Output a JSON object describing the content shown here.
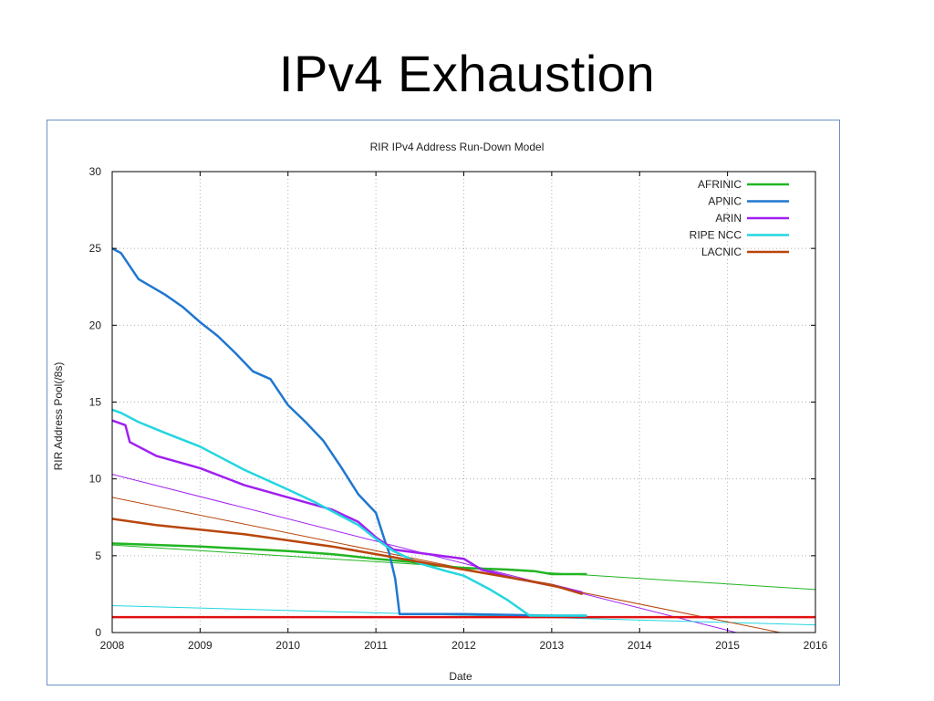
{
  "slide": {
    "title": "IPv4 Exhaustion"
  },
  "colors": {
    "frame_border": "#6b8fc7",
    "AFRINIC": "#22b522",
    "APNIC": "#1f77d0",
    "ARIN": "#a020f0",
    "RIPE NCC": "#23d6e0",
    "LACNIC": "#b8460b",
    "threshold": "#e01010",
    "grid": "#b0b0b0"
  },
  "chart_data": {
    "type": "line",
    "title": "RIR IPv4 Address Run-Down Model",
    "xlabel": "Date",
    "ylabel": "RIR Address Pool(/8s)",
    "xlim": [
      2008,
      2016
    ],
    "ylim": [
      0,
      30
    ],
    "x_ticks": [
      "2008",
      "2009",
      "2010",
      "2011",
      "2012",
      "2013",
      "2014",
      "2015",
      "2016"
    ],
    "y_ticks": [
      "0",
      "5",
      "10",
      "15",
      "20",
      "25",
      "30"
    ],
    "grid": true,
    "legend_position": "top-right",
    "threshold_line": {
      "y": 1,
      "x": [
        2008,
        2016
      ]
    },
    "series": [
      {
        "name": "AFRINIC",
        "data": [
          [
            2008.0,
            5.8
          ],
          [
            2009.0,
            5.6
          ],
          [
            2010.0,
            5.3
          ],
          [
            2010.5,
            5.1
          ],
          [
            2011.0,
            4.8
          ],
          [
            2011.4,
            4.6
          ],
          [
            2011.6,
            4.4
          ],
          [
            2012.0,
            4.2
          ],
          [
            2012.5,
            4.1
          ],
          [
            2012.8,
            4.0
          ],
          [
            2013.0,
            3.8
          ],
          [
            2013.4,
            3.8
          ]
        ],
        "trend": [
          [
            2008.0,
            5.7
          ],
          [
            2016.0,
            2.8
          ]
        ]
      },
      {
        "name": "APNIC",
        "data": [
          [
            2008.0,
            25.0
          ],
          [
            2008.1,
            24.7
          ],
          [
            2008.3,
            23.0
          ],
          [
            2008.6,
            22.0
          ],
          [
            2008.8,
            21.2
          ],
          [
            2009.0,
            20.2
          ],
          [
            2009.2,
            19.3
          ],
          [
            2009.4,
            18.2
          ],
          [
            2009.6,
            17.0
          ],
          [
            2009.8,
            16.5
          ],
          [
            2010.0,
            14.8
          ],
          [
            2010.2,
            13.7
          ],
          [
            2010.4,
            12.5
          ],
          [
            2010.6,
            10.8
          ],
          [
            2010.8,
            9.0
          ],
          [
            2011.0,
            7.8
          ],
          [
            2011.1,
            6.0
          ],
          [
            2011.15,
            5.2
          ],
          [
            2011.22,
            3.5
          ],
          [
            2011.27,
            1.2
          ],
          [
            2012.0,
            1.2
          ],
          [
            2013.0,
            1.1
          ],
          [
            2013.4,
            1.1
          ]
        ]
      },
      {
        "name": "ARIN",
        "data": [
          [
            2008.0,
            13.8
          ],
          [
            2008.15,
            13.5
          ],
          [
            2008.2,
            12.4
          ],
          [
            2008.5,
            11.5
          ],
          [
            2009.0,
            10.7
          ],
          [
            2009.5,
            9.6
          ],
          [
            2010.0,
            8.8
          ],
          [
            2010.5,
            8.0
          ],
          [
            2010.8,
            7.2
          ],
          [
            2011.0,
            6.2
          ],
          [
            2011.2,
            5.4
          ],
          [
            2011.6,
            5.1
          ],
          [
            2012.0,
            4.8
          ],
          [
            2012.2,
            4.1
          ],
          [
            2012.6,
            3.5
          ],
          [
            2013.0,
            3.1
          ],
          [
            2013.35,
            2.6
          ]
        ],
        "trend": [
          [
            2008.0,
            10.3
          ],
          [
            2015.1,
            0.0
          ]
        ]
      },
      {
        "name": "RIPE NCC",
        "data": [
          [
            2008.0,
            14.5
          ],
          [
            2008.1,
            14.3
          ],
          [
            2008.3,
            13.7
          ],
          [
            2008.6,
            13.0
          ],
          [
            2009.0,
            12.1
          ],
          [
            2009.5,
            10.6
          ],
          [
            2010.0,
            9.3
          ],
          [
            2010.3,
            8.5
          ],
          [
            2010.6,
            7.6
          ],
          [
            2010.8,
            7.0
          ],
          [
            2011.0,
            6.1
          ],
          [
            2011.2,
            5.3
          ],
          [
            2011.5,
            4.5
          ],
          [
            2011.8,
            4.0
          ],
          [
            2012.0,
            3.7
          ],
          [
            2012.3,
            2.8
          ],
          [
            2012.5,
            2.1
          ],
          [
            2012.7,
            1.3
          ],
          [
            2012.75,
            1.1
          ],
          [
            2013.4,
            1.1
          ]
        ],
        "trend": [
          [
            2008.0,
            1.75
          ],
          [
            2016.0,
            0.5
          ]
        ]
      },
      {
        "name": "LACNIC",
        "data": [
          [
            2008.0,
            7.4
          ],
          [
            2008.5,
            7.0
          ],
          [
            2009.0,
            6.7
          ],
          [
            2009.5,
            6.4
          ],
          [
            2010.0,
            6.0
          ],
          [
            2010.5,
            5.6
          ],
          [
            2011.0,
            5.1
          ],
          [
            2011.5,
            4.6
          ],
          [
            2012.0,
            4.1
          ],
          [
            2012.5,
            3.6
          ],
          [
            2013.0,
            3.1
          ],
          [
            2013.35,
            2.5
          ]
        ],
        "trend": [
          [
            2008.0,
            8.8
          ],
          [
            2015.6,
            0.0
          ]
        ]
      }
    ]
  }
}
